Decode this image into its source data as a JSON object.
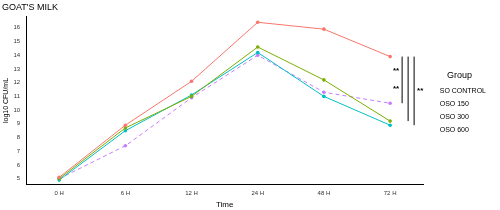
{
  "chart_data": {
    "type": "line",
    "title": "GOAT'S MILK",
    "x_label": "Time",
    "y_label": "log10 CFU/mL",
    "categories": [
      "0 H",
      "6 H",
      "12 H",
      "24 H",
      "48 H",
      "72 H"
    ],
    "series": [
      {
        "name": "SO CONTROL",
        "color": "#f8766d",
        "line_style": "solid",
        "values": [
          5.1,
          8.9,
          12.1,
          16.4,
          15.9,
          13.9
        ]
      },
      {
        "name": "OSO 150",
        "color": "#7cae00",
        "line_style": "solid",
        "values": [
          5.0,
          8.7,
          11.0,
          14.6,
          12.2,
          9.2
        ]
      },
      {
        "name": "OSO 300",
        "color": "#00bfc4",
        "line_style": "solid",
        "values": [
          4.9,
          8.5,
          11.1,
          14.2,
          11.0,
          8.9
        ]
      },
      {
        "name": "OSO 600",
        "color": "#c77cff",
        "line_style": "dashed",
        "values": [
          5.0,
          7.4,
          10.9,
          14.0,
          11.3,
          10.5
        ]
      }
    ],
    "ylim": [
      4.6,
      16.8
    ],
    "yticks": [
      5,
      6,
      7,
      8,
      9,
      10,
      11,
      12,
      13,
      14,
      15,
      16
    ],
    "grid": false,
    "legend": "right",
    "legend_title": "Group",
    "marker": "circle",
    "annotations": [
      {
        "text": "**",
        "between": [
          "SO CONTROL",
          "OSO 600"
        ]
      },
      {
        "text": "**",
        "between": [
          "SO CONTROL",
          "OSO 150"
        ]
      },
      {
        "text": "**",
        "between": [
          "SO CONTROL",
          "OSO 300"
        ]
      }
    ]
  }
}
